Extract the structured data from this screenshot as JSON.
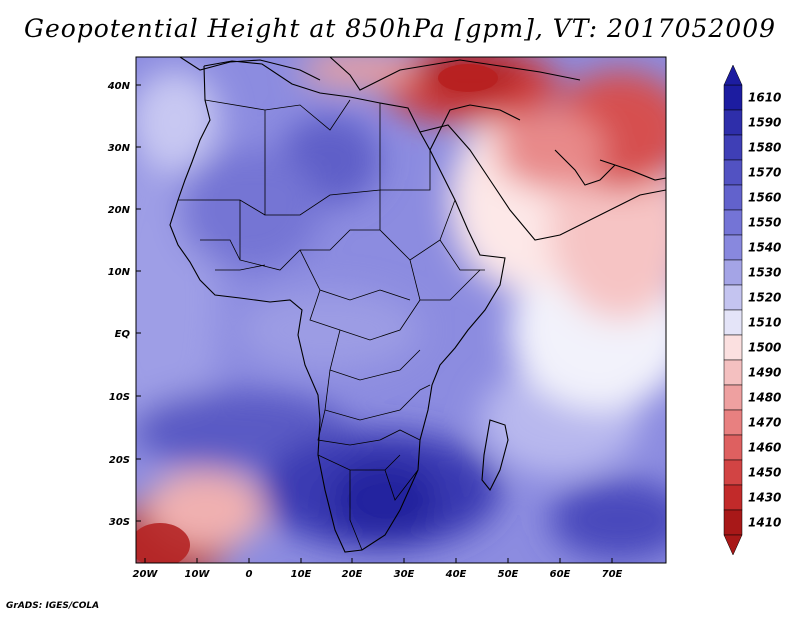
{
  "title": "Geopotential Height at 850hPa [gpm], VT: 2017052009",
  "credit": "GrADS: IGES/COLA",
  "lat_labels": [
    "40N",
    "30N",
    "20N",
    "10N",
    "EQ",
    "10S",
    "20S",
    "30S"
  ],
  "lon_labels": [
    "20W",
    "10W",
    "0",
    "10E",
    "20E",
    "30E",
    "40E",
    "50E",
    "60E",
    "70E"
  ],
  "colorbar": {
    "levels": [
      "1610",
      "1590",
      "1580",
      "1570",
      "1560",
      "1550",
      "1540",
      "1530",
      "1520",
      "1510",
      "1500",
      "1490",
      "1480",
      "1470",
      "1460",
      "1450",
      "1430",
      "1410"
    ],
    "colors": [
      "#1c1ca0",
      "#2e2eaa",
      "#3f3fb6",
      "#5252c2",
      "#6262cc",
      "#7474d6",
      "#8888de",
      "#a4a4e6",
      "#c4c4f0",
      "#e4e4f8",
      "#fbe0e0",
      "#f4c0c0",
      "#eea0a0",
      "#e88080",
      "#de6060",
      "#d24444",
      "#c22a2a",
      "#a81818"
    ]
  }
}
